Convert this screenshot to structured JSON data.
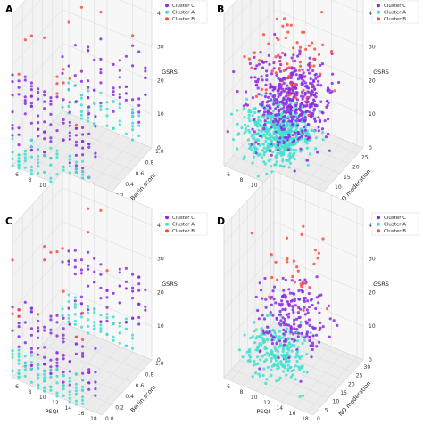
{
  "colors": {
    "Cluster C": "#8b2be2",
    "Cluster A": "#40e0d0",
    "Cluster B": "#ff4a3d"
  },
  "chart_data": [
    {
      "type": "scatter",
      "panel": "A",
      "xlabel": "PSQI",
      "ylabel": "Berlin score",
      "zlabel": "GSRS",
      "xticks": [
        "6",
        "8",
        "10",
        "12",
        "14",
        "16",
        "18"
      ],
      "yticks": [
        "0.0",
        "0.2",
        "0.4",
        "0.6",
        "0.8",
        "1.0"
      ],
      "zticks": [
        "0",
        "10",
        "20",
        "30",
        "40"
      ],
      "xlim": [
        5,
        19
      ],
      "ylim": [
        0,
        1
      ],
      "zlim": [
        0,
        45
      ],
      "legend": [
        "Cluster C",
        "Cluster A",
        "Cluster B"
      ],
      "legend_position": "top-right",
      "series": [
        {
          "name": "Cluster C",
          "x_range": [
            5,
            18
          ],
          "y_values": [
            0,
            1
          ],
          "z_range": [
            6,
            28
          ]
        },
        {
          "name": "Cluster A",
          "x_range": [
            5,
            17
          ],
          "y_values": [
            0,
            1
          ],
          "z_range": [
            0,
            10
          ]
        },
        {
          "name": "Cluster B",
          "x_range": [
            5,
            17
          ],
          "y_values": [
            0,
            1
          ],
          "z_range": [
            20,
            45
          ]
        }
      ]
    },
    {
      "type": "scatter",
      "panel": "B",
      "xlabel": "PSQI",
      "ylabel": "NO moderation",
      "zlabel": "GSRS",
      "xticks": [
        "6",
        "8",
        "10",
        "12",
        "14",
        "16",
        "18"
      ],
      "yticks": [
        "0",
        "5",
        "10",
        "15",
        "20",
        "25"
      ],
      "zticks": [
        "0",
        "10",
        "20",
        "30",
        "40"
      ],
      "xlim": [
        5,
        19
      ],
      "ylim": [
        0,
        28
      ],
      "zlim": [
        0,
        45
      ],
      "legend": [
        "Cluster C",
        "Cluster A",
        "Cluster B"
      ],
      "legend_position": "top-right",
      "series": [
        {
          "name": "Cluster C",
          "x_range": [
            5,
            18
          ],
          "y_range": [
            0,
            28
          ],
          "z_range": [
            4,
            28
          ]
        },
        {
          "name": "Cluster A",
          "x_range": [
            5,
            16
          ],
          "y_range": [
            0,
            22
          ],
          "z_range": [
            0,
            14
          ]
        },
        {
          "name": "Cluster B",
          "x_range": [
            6,
            18
          ],
          "y_range": [
            0,
            28
          ],
          "z_range": [
            14,
            45
          ]
        }
      ]
    },
    {
      "type": "scatter",
      "panel": "C",
      "xlabel": "PSQI",
      "ylabel": "Berlin score",
      "zlabel": "GSRS",
      "xticks": [
        "6",
        "8",
        "10",
        "12",
        "14",
        "16",
        "18"
      ],
      "yticks": [
        "0.0",
        "0.2",
        "0.4",
        "0.6",
        "0.8",
        "1.0"
      ],
      "zticks": [
        "0",
        "10",
        "20",
        "30",
        "40"
      ],
      "xlim": [
        5,
        19
      ],
      "ylim": [
        0,
        1
      ],
      "zlim": [
        0,
        45
      ],
      "legend": [
        "Cluster C",
        "Cluster A",
        "Cluster B"
      ],
      "legend_position": "top-right",
      "series": [
        {
          "name": "Cluster C",
          "x_range": [
            5,
            18
          ],
          "y_values": [
            0,
            1
          ],
          "z_range": [
            5,
            24
          ]
        },
        {
          "name": "Cluster A",
          "x_range": [
            5,
            16
          ],
          "y_values": [
            0,
            1
          ],
          "z_range": [
            0,
            9
          ]
        },
        {
          "name": "Cluster B",
          "x_range": [
            5,
            17
          ],
          "y_values": [
            0,
            1
          ],
          "z_range": [
            18,
            44
          ]
        }
      ]
    },
    {
      "type": "scatter",
      "panel": "D",
      "xlabel": "PSQI",
      "ylabel": "NO moderation",
      "zlabel": "GSRS",
      "xticks": [
        "6",
        "8",
        "10",
        "12",
        "14",
        "16",
        "18"
      ],
      "yticks": [
        "0",
        "5",
        "10",
        "15",
        "20",
        "25",
        "30"
      ],
      "zticks": [
        "0",
        "10",
        "20",
        "30",
        "40"
      ],
      "xlim": [
        5,
        19
      ],
      "ylim": [
        0,
        32
      ],
      "zlim": [
        0,
        45
      ],
      "legend": [
        "Cluster C",
        "Cluster A",
        "Cluster B"
      ],
      "legend_position": "top-right",
      "series": [
        {
          "name": "Cluster C",
          "x_range": [
            6,
            18
          ],
          "y_range": [
            0,
            30
          ],
          "z_range": [
            4,
            26
          ]
        },
        {
          "name": "Cluster A",
          "x_range": [
            5,
            16
          ],
          "y_range": [
            0,
            24
          ],
          "z_range": [
            0,
            12
          ]
        },
        {
          "name": "Cluster B",
          "x_range": [
            7,
            18
          ],
          "y_range": [
            0,
            30
          ],
          "z_range": [
            16,
            44
          ]
        }
      ]
    }
  ]
}
